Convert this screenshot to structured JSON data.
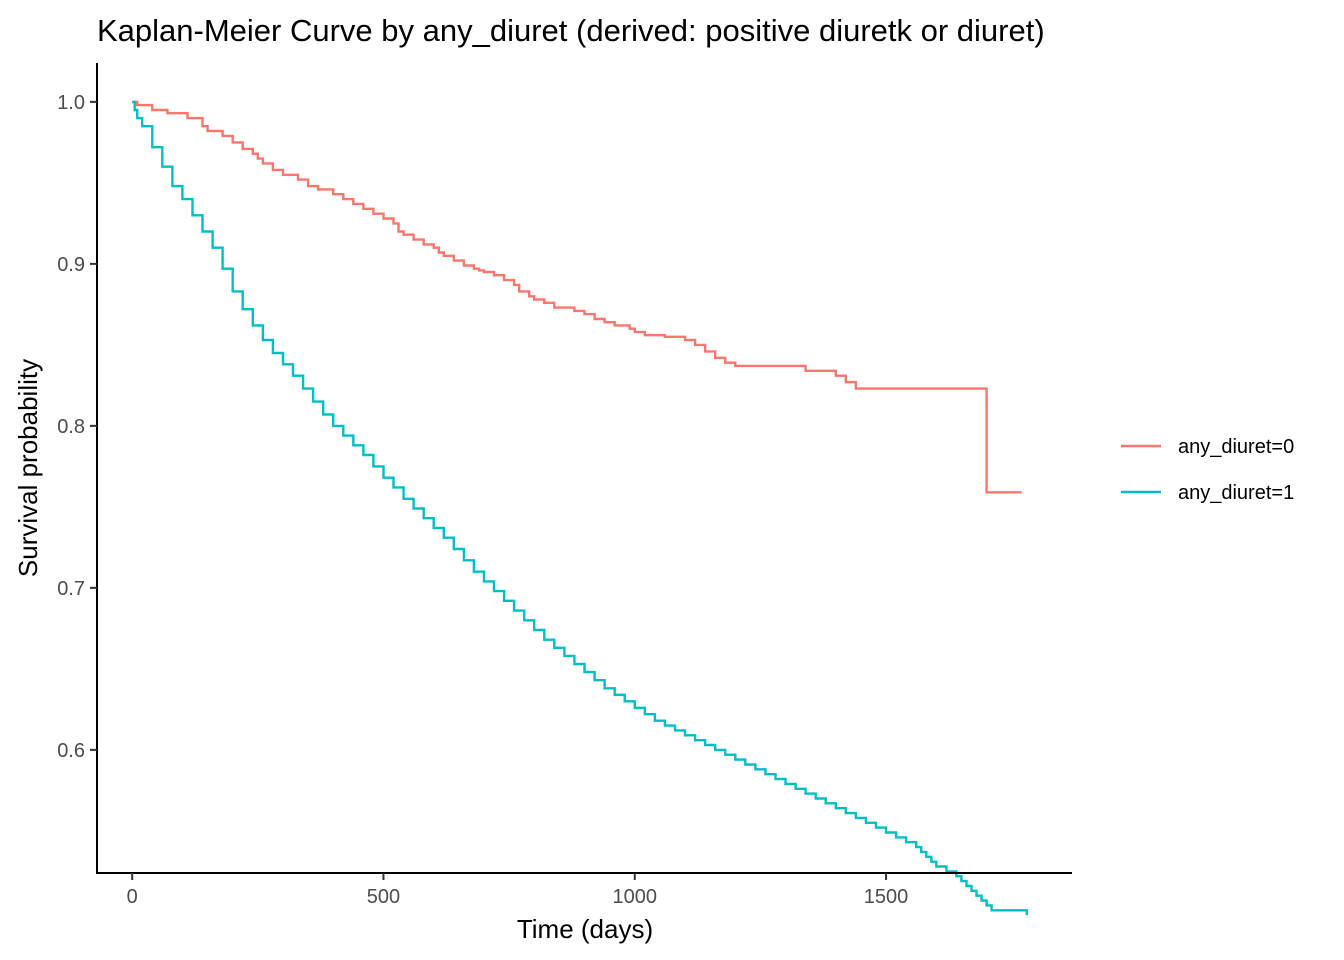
{
  "chart_data": {
    "type": "line",
    "subtype": "kaplan-meier step",
    "title": "Kaplan-Meier Curve by any_diuret (derived: positive diuretk or diuret)",
    "xlabel": "Time (days)",
    "ylabel": "Survival probability",
    "xlim": [
      -70,
      1870
    ],
    "ylim": [
      0.524,
      1.024
    ],
    "x_ticks": [
      0,
      500,
      1000,
      1500
    ],
    "x_tick_labels": [
      "0",
      "500",
      "1000",
      "1500"
    ],
    "y_ticks": [
      0.6,
      0.7,
      0.8,
      0.9,
      1.0
    ],
    "y_tick_labels": [
      "0.6",
      "0.7",
      "0.8",
      "0.9",
      "1.0"
    ],
    "grid": false,
    "legend": {
      "position": "right"
    },
    "series": [
      {
        "name": "any_diuret=0",
        "color": "#F8766D",
        "x": [
          0,
          10,
          40,
          70,
          110,
          140,
          150,
          180,
          200,
          220,
          240,
          250,
          260,
          280,
          300,
          330,
          350,
          370,
          400,
          420,
          440,
          460,
          480,
          500,
          520,
          530,
          540,
          560,
          580,
          600,
          610,
          620,
          640,
          660,
          680,
          690,
          700,
          720,
          740,
          760,
          770,
          790,
          800,
          820,
          840,
          880,
          900,
          920,
          940,
          960,
          990,
          1000,
          1020,
          1060,
          1100,
          1120,
          1140,
          1160,
          1180,
          1200,
          1340,
          1400,
          1420,
          1440,
          1690,
          1700,
          1770
        ],
        "y": [
          1.0,
          0.998,
          0.995,
          0.993,
          0.99,
          0.985,
          0.982,
          0.979,
          0.975,
          0.971,
          0.968,
          0.965,
          0.962,
          0.958,
          0.955,
          0.952,
          0.948,
          0.946,
          0.943,
          0.94,
          0.937,
          0.934,
          0.931,
          0.928,
          0.925,
          0.92,
          0.918,
          0.915,
          0.912,
          0.91,
          0.907,
          0.905,
          0.902,
          0.899,
          0.897,
          0.896,
          0.895,
          0.893,
          0.89,
          0.887,
          0.883,
          0.88,
          0.878,
          0.876,
          0.873,
          0.871,
          0.869,
          0.866,
          0.864,
          0.862,
          0.86,
          0.858,
          0.856,
          0.855,
          0.853,
          0.85,
          0.846,
          0.842,
          0.839,
          0.837,
          0.834,
          0.831,
          0.827,
          0.823,
          0.823,
          0.759,
          0.759
        ]
      },
      {
        "name": "any_diuret=1",
        "color": "#00BFC4",
        "x": [
          0,
          5,
          10,
          20,
          40,
          60,
          80,
          100,
          120,
          140,
          160,
          180,
          200,
          220,
          240,
          260,
          280,
          300,
          320,
          340,
          360,
          380,
          400,
          420,
          440,
          460,
          480,
          500,
          520,
          540,
          560,
          580,
          600,
          620,
          640,
          660,
          680,
          700,
          720,
          740,
          760,
          780,
          800,
          820,
          840,
          860,
          880,
          900,
          920,
          940,
          960,
          980,
          1000,
          1020,
          1040,
          1060,
          1080,
          1100,
          1120,
          1140,
          1160,
          1180,
          1200,
          1220,
          1240,
          1260,
          1280,
          1300,
          1320,
          1340,
          1360,
          1380,
          1400,
          1420,
          1440,
          1460,
          1480,
          1500,
          1520,
          1540,
          1560,
          1570,
          1580,
          1590,
          1600,
          1620,
          1640,
          1650,
          1660,
          1670,
          1680,
          1690,
          1700,
          1710,
          1780
        ],
        "y": [
          1.0,
          0.995,
          0.99,
          0.985,
          0.972,
          0.96,
          0.948,
          0.94,
          0.93,
          0.92,
          0.91,
          0.897,
          0.883,
          0.872,
          0.862,
          0.853,
          0.845,
          0.838,
          0.831,
          0.823,
          0.815,
          0.807,
          0.8,
          0.794,
          0.788,
          0.782,
          0.775,
          0.768,
          0.762,
          0.755,
          0.749,
          0.743,
          0.737,
          0.731,
          0.724,
          0.717,
          0.71,
          0.704,
          0.698,
          0.692,
          0.686,
          0.68,
          0.674,
          0.668,
          0.663,
          0.658,
          0.653,
          0.648,
          0.643,
          0.638,
          0.634,
          0.63,
          0.626,
          0.622,
          0.618,
          0.615,
          0.612,
          0.609,
          0.606,
          0.603,
          0.6,
          0.597,
          0.594,
          0.591,
          0.588,
          0.585,
          0.582,
          0.579,
          0.576,
          0.573,
          0.57,
          0.567,
          0.564,
          0.561,
          0.558,
          0.555,
          0.552,
          0.549,
          0.546,
          0.543,
          0.54,
          0.537,
          0.534,
          0.531,
          0.528,
          0.525,
          0.522,
          0.519,
          0.516,
          0.513,
          0.51,
          0.507,
          0.504,
          0.501,
          0.498
        ]
      }
    ]
  }
}
